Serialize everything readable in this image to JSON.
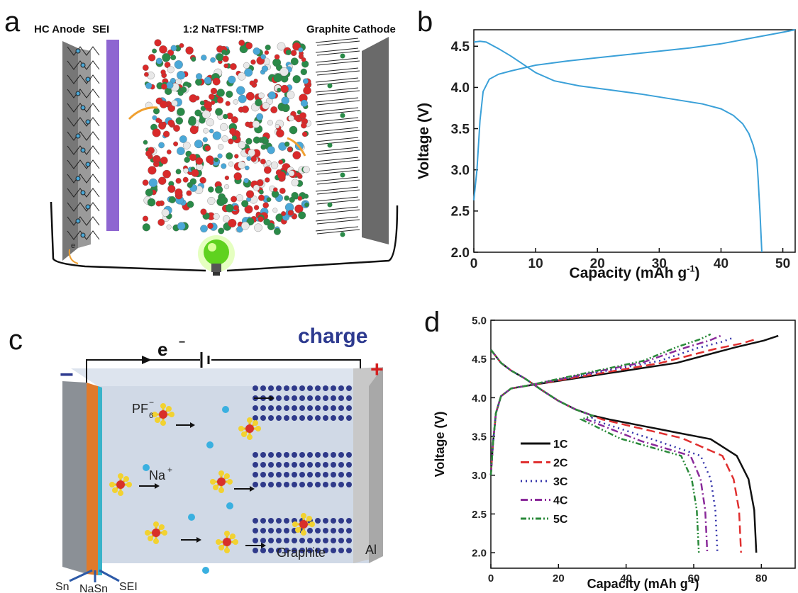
{
  "panel_letters": {
    "a": "a",
    "b": "b",
    "c": "c",
    "d": "d"
  },
  "diagram_a": {
    "labels": {
      "anode": "HC Anode",
      "sei": "SEI",
      "electrolyte": "1:2 NaTFSI:TMP",
      "cathode": "Graphite Cathode",
      "electron": "e"
    }
  },
  "diagram_c": {
    "labels": {
      "charge": "charge",
      "electron": "e",
      "minus": "−",
      "plus": "+",
      "pf6": "PF",
      "na": "Na",
      "graphite": "Graphite",
      "al": "Al",
      "sn": "Sn",
      "nasn": "NaSn",
      "sei": "SEI"
    }
  },
  "chart_data": [
    {
      "id": "b",
      "type": "line",
      "xlabel": "Capacity (mAh g",
      "xlabel_sup": "-1",
      "xlabel_end": ")",
      "ylabel": "Voltage (V)",
      "xlim": [
        0,
        52
      ],
      "ylim": [
        2.0,
        4.7
      ],
      "xticks": [
        0,
        10,
        20,
        30,
        40,
        50
      ],
      "yticks": [
        2.0,
        2.5,
        3.0,
        3.5,
        4.0,
        4.5
      ],
      "xtick_labels": [
        "0",
        "10",
        "20",
        "30",
        "40",
        "50"
      ],
      "ytick_labels": [
        "2.0",
        "2.5",
        "3.0",
        "3.5",
        "4.0",
        "4.5"
      ],
      "color": "#3aa0d8",
      "series": [
        {
          "role": "charge",
          "points": [
            [
              0,
              2.63
            ],
            [
              0.5,
              3.0
            ],
            [
              1.0,
              3.6
            ],
            [
              1.5,
              3.95
            ],
            [
              2.5,
              4.1
            ],
            [
              4,
              4.16
            ],
            [
              6,
              4.2
            ],
            [
              10,
              4.27
            ],
            [
              15,
              4.32
            ],
            [
              20,
              4.36
            ],
            [
              25,
              4.4
            ],
            [
              30,
              4.44
            ],
            [
              35,
              4.48
            ],
            [
              40,
              4.53
            ],
            [
              45,
              4.6
            ],
            [
              50,
              4.67
            ],
            [
              52,
              4.7
            ]
          ]
        },
        {
          "role": "discharge",
          "points": [
            [
              0,
              4.55
            ],
            [
              1,
              4.56
            ],
            [
              2,
              4.55
            ],
            [
              4,
              4.47
            ],
            [
              6,
              4.38
            ],
            [
              8,
              4.28
            ],
            [
              10,
              4.18
            ],
            [
              13,
              4.08
            ],
            [
              17,
              4.02
            ],
            [
              22,
              3.97
            ],
            [
              27,
              3.92
            ],
            [
              32,
              3.86
            ],
            [
              37,
              3.8
            ],
            [
              40,
              3.74
            ],
            [
              42,
              3.66
            ],
            [
              43.5,
              3.56
            ],
            [
              44.5,
              3.44
            ],
            [
              45.2,
              3.3
            ],
            [
              45.8,
              3.12
            ],
            [
              46,
              2.9
            ],
            [
              46.3,
              2.5
            ],
            [
              46.6,
              2.0
            ]
          ]
        }
      ]
    },
    {
      "id": "d",
      "type": "line",
      "xlabel": "Capacity (mAh g",
      "xlabel_sup": "-1",
      "xlabel_end": ")",
      "ylabel": "Voltage (V)",
      "xlim": [
        0,
        90
      ],
      "ylim": [
        1.8,
        5.0
      ],
      "xticks": [
        0,
        20,
        40,
        60,
        80
      ],
      "yticks": [
        2.0,
        2.5,
        3.0,
        3.5,
        4.0,
        4.5,
        5.0
      ],
      "xtick_labels": [
        "0",
        "20",
        "40",
        "60",
        "80"
      ],
      "ytick_labels": [
        "2.0",
        "2.5",
        "3.0",
        "3.5",
        "4.0",
        "4.5",
        "5.0"
      ],
      "legend_position": "bottom-left",
      "series": [
        {
          "name": "1C",
          "color": "#111111",
          "dash": "",
          "charge_end": 85,
          "charge_end_v": 4.8,
          "discharge_end": 78.5,
          "knee": 68
        },
        {
          "name": "2C",
          "color": "#e03030",
          "dash": "12 6",
          "charge_end": 78,
          "charge_end_v": 4.75,
          "discharge_end": 74,
          "knee": 64
        },
        {
          "name": "3C",
          "color": "#3333aa",
          "dash": "2 5",
          "charge_end": 72,
          "charge_end_v": 4.78,
          "discharge_end": 67,
          "knee": 58
        },
        {
          "name": "4C",
          "color": "#8a2a9a",
          "dash": "10 4 2 4",
          "charge_end": 68,
          "charge_end_v": 4.8,
          "discharge_end": 64,
          "knee": 55
        },
        {
          "name": "5C",
          "color": "#2a8a3a",
          "dash": "8 3 2 3 2 3",
          "charge_end": 65,
          "charge_end_v": 4.82,
          "discharge_end": 61.5,
          "knee": 52
        }
      ]
    }
  ]
}
